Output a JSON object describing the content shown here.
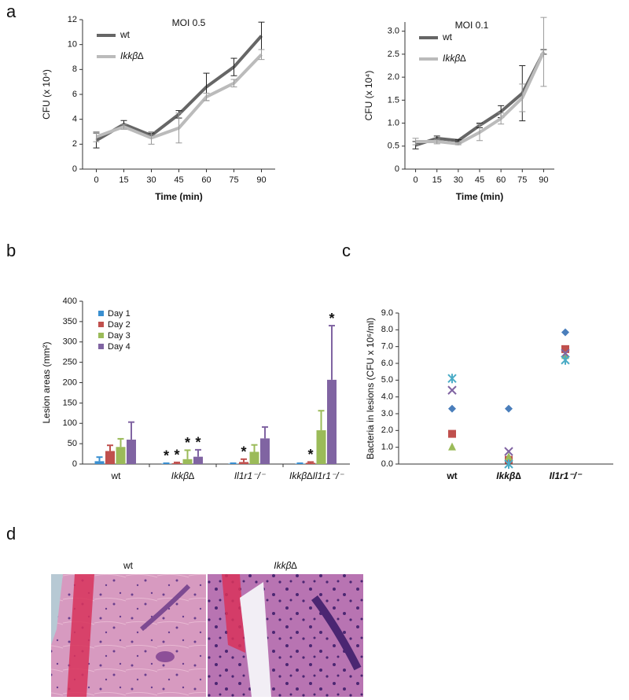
{
  "chart_data": [
    {
      "type": "line",
      "title": "MOI 0.5",
      "x_label": "Time (min)",
      "y_label": "CFU (x 10⁴)",
      "x": [
        0,
        15,
        30,
        45,
        60,
        75,
        90
      ],
      "xlim": [
        -7.5,
        97.5
      ],
      "xticks": [
        0,
        15,
        30,
        45,
        60,
        75,
        90
      ],
      "ylim": [
        0,
        12
      ],
      "yticks": [
        0,
        2,
        4,
        6,
        8,
        10,
        12
      ],
      "legend": "upper left",
      "series": [
        {
          "name": "wt",
          "color": "#666666",
          "values": [
            2.3,
            3.6,
            2.7,
            4.4,
            6.6,
            8.2,
            10.7
          ],
          "errors": [
            0.6,
            0.3,
            0.2,
            0.3,
            1.1,
            0.7,
            1.1
          ]
        },
        {
          "name": "Ikkβ∆",
          "color": "#bbbbbb",
          "values": [
            2.6,
            3.4,
            2.5,
            3.3,
            5.8,
            6.9,
            9.2
          ],
          "errors": [
            0.4,
            0.2,
            0.5,
            1.2,
            0.3,
            0.3,
            0.4
          ]
        }
      ]
    },
    {
      "type": "line",
      "title": "MOI 0.1",
      "x_label": "Time (min)",
      "y_label": "CFU (x 10⁴)",
      "x": [
        0,
        15,
        30,
        45,
        60,
        75,
        90
      ],
      "xlim": [
        -7.5,
        97.5
      ],
      "xticks": [
        0,
        15,
        30,
        45,
        60,
        75,
        90
      ],
      "ylim": [
        0,
        3.2
      ],
      "yticks": [
        0,
        0.5,
        {
          "value": 1,
          "label": "1.0"
        },
        1.5,
        {
          "value": 2,
          "label": "2.0"
        },
        2.5,
        {
          "value": 3,
          "label": "3.0"
        }
      ],
      "legend": "upper left",
      "series": [
        {
          "name": "wt",
          "color": "#666666",
          "values": [
            0.52,
            0.67,
            0.62,
            0.95,
            1.25,
            1.65,
            2.55
          ],
          "errors": [
            0.08,
            0.05,
            0.02,
            0.05,
            0.13,
            0.6,
            0.05
          ]
        },
        {
          "name": "Ikkβ∆",
          "color": "#bbbbbb",
          "values": [
            0.6,
            0.6,
            0.55,
            0.8,
            1.1,
            1.55,
            2.55
          ],
          "errors": [
            0.07,
            0.05,
            0.02,
            0.18,
            0.12,
            0.3,
            0.75
          ]
        }
      ]
    },
    {
      "type": "bar",
      "y_label": "Lesion areas (mm²)",
      "categories": [
        "wt",
        "Ikkβ∆",
        "Il1r1⁻/⁻",
        "Ikkβ∆Il1r1⁻/⁻"
      ],
      "ylim": [
        0,
        400
      ],
      "yticks": [
        0,
        50,
        100,
        150,
        200,
        250,
        300,
        350,
        400
      ],
      "legend": "upper left",
      "series": [
        {
          "name": "Day 1",
          "color": "#3a8fd0",
          "values": [
            7,
            1,
            1,
            1
          ],
          "errors": [
            10,
            1,
            1,
            1
          ],
          "significance": [
            null,
            "*",
            null,
            null
          ]
        },
        {
          "name": "Day 2",
          "color": "#c0504d",
          "values": [
            32,
            2,
            5,
            3
          ],
          "errors": [
            14,
            2,
            7,
            2
          ],
          "significance": [
            null,
            "*",
            "*",
            "*"
          ]
        },
        {
          "name": "Day 3",
          "color": "#9bbb59",
          "values": [
            42,
            12,
            30,
            83
          ],
          "errors": [
            20,
            22,
            17,
            48
          ],
          "significance": [
            null,
            "*",
            null,
            null
          ]
        },
        {
          "name": "Day 4",
          "color": "#8064a2",
          "values": [
            60,
            18,
            63,
            207
          ],
          "errors": [
            43,
            17,
            28,
            133
          ],
          "significance": [
            null,
            "*",
            null,
            "*"
          ]
        }
      ]
    },
    {
      "type": "scatter",
      "y_label": "Bacteria in lesions (CFU x 10⁶/ml)",
      "categories": [
        "wt",
        "Ikkβ∆",
        "Il1r1⁻/⁻"
      ],
      "ylim": [
        0,
        9
      ],
      "yticks": [
        {
          "value": 0,
          "label": "0.0"
        },
        {
          "value": 1,
          "label": "1.0"
        },
        {
          "value": 2,
          "label": "2.0"
        },
        {
          "value": 3,
          "label": "3.0"
        },
        {
          "value": 4,
          "label": "4.0"
        },
        {
          "value": 5,
          "label": "5.0"
        },
        {
          "value": 6,
          "label": "6.0"
        },
        {
          "value": 7,
          "label": "7.0"
        },
        {
          "value": 8,
          "label": "8.0"
        },
        {
          "value": 9,
          "label": "9.0"
        }
      ],
      "series": [
        {
          "marker": "diamond",
          "color": "#4a7ebb",
          "values": [
            3.3,
            3.3,
            7.85
          ]
        },
        {
          "marker": "square",
          "color": "#c0504d",
          "values": [
            1.8,
            0.25,
            6.85
          ]
        },
        {
          "marker": "triangle",
          "color": "#9bbb59",
          "values": [
            1.05,
            0.45,
            6.5
          ]
        },
        {
          "marker": "x",
          "color": "#8064a2",
          "values": [
            4.4,
            0.75,
            6.6
          ]
        },
        {
          "marker": "asterisk",
          "color": "#4bacc6",
          "values": [
            5.1,
            0.0,
            6.2
          ]
        }
      ]
    }
  ],
  "panel_labels": [
    "a",
    "b",
    "c",
    "d"
  ],
  "figure_d": {
    "labels": [
      "wt",
      "Ikkβ∆"
    ]
  }
}
